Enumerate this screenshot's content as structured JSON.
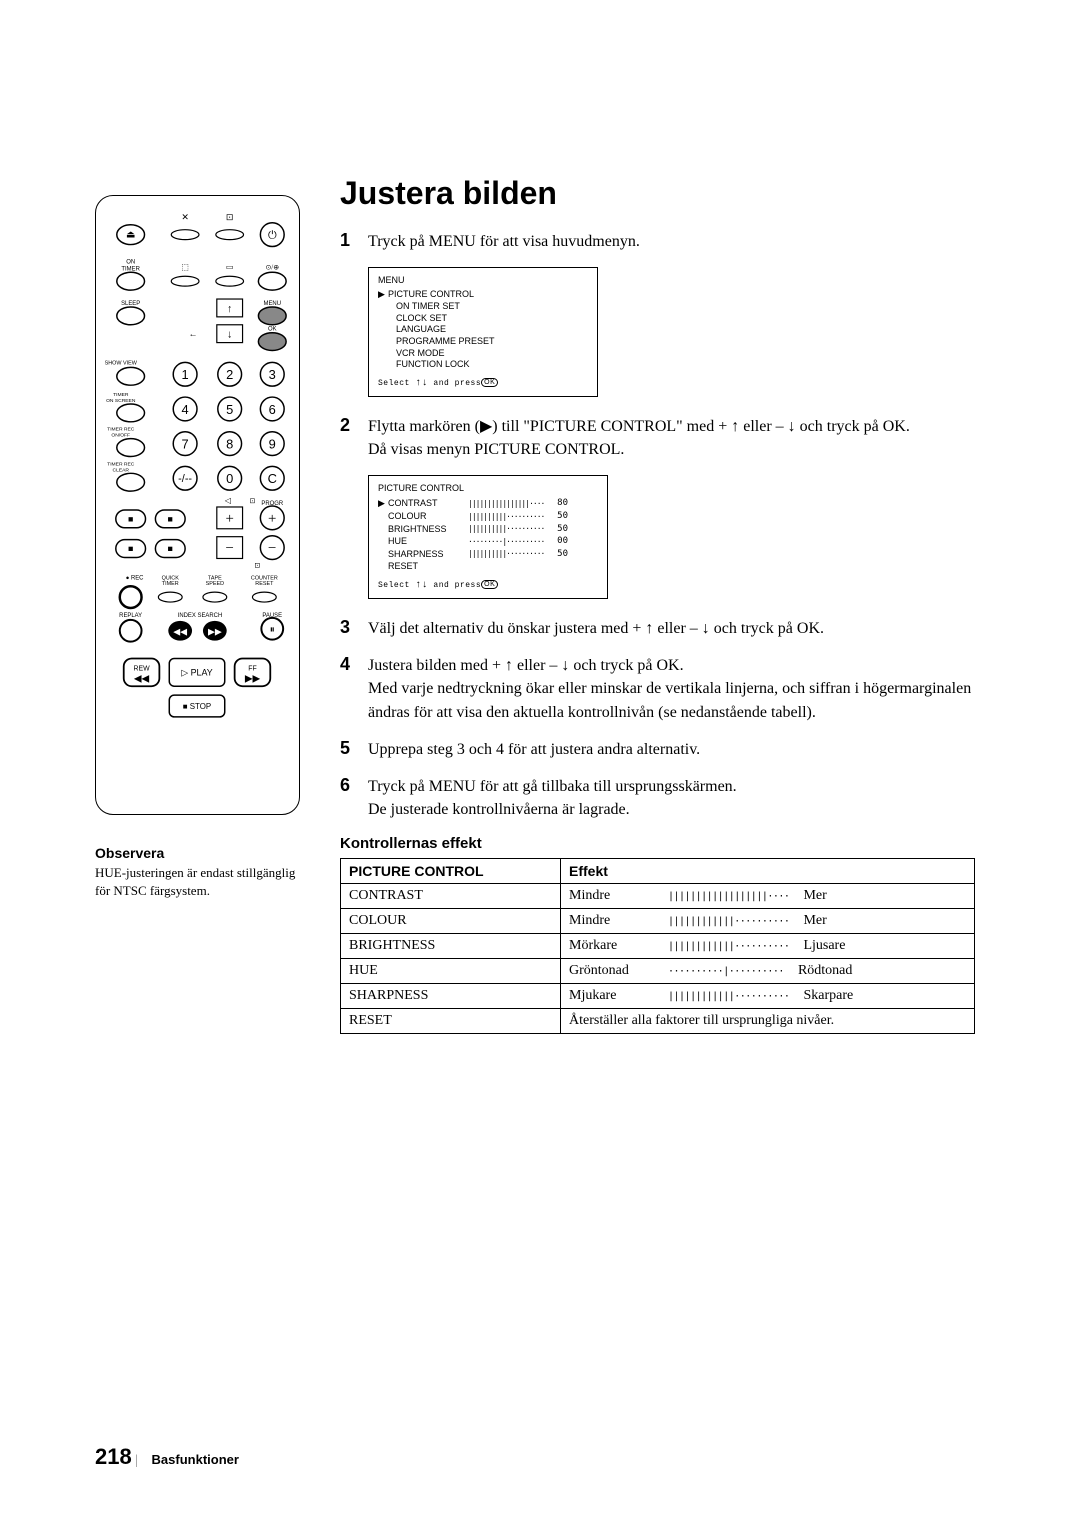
{
  "title": "Justera bilden",
  "remote": {
    "labels": {
      "on_timer": "ON\nTIMER",
      "sleep": "SLEEP",
      "menu": "MENU",
      "ok": "OK",
      "show_view": "SHOW VIEW",
      "timer_on_screen": "TIMER\nON SCREEN",
      "timer_rec_onoff": "TIMER REC\nON/OFF",
      "timer_rec_clear": "TIMER REC\nCLEAR",
      "progr": "PROGR",
      "rec": "REC",
      "quick_timer": "QUICK\nTIMER",
      "tape_speed": "TAPE\nSPEED",
      "counter_reset": "COUNTER\nRESET",
      "replay": "REPLAY",
      "index_search": "INDEX SEARCH",
      "pause": "PAUSE",
      "rew": "REW",
      "play": "PLAY",
      "ff": "FF",
      "stop": "STOP"
    }
  },
  "note": {
    "label": "Observera",
    "text": "HUE-justeringen är endast stillgänglig för NTSC färgsystem."
  },
  "steps": {
    "s1": "Tryck på MENU för att visa huvudmenyn.",
    "s2a": "Flytta markören (▶) till \"PICTURE CONTROL\" med + ↑ eller – ↓ och tryck på OK.",
    "s2b": "Då visas menyn PICTURE CONTROL.",
    "s3": "Välj det alternativ du önskar justera med + ↑ eller – ↓ och tryck på OK.",
    "s4a": "Justera bilden med + ↑ eller – ↓ och tryck på OK.",
    "s4b": "Med varje nedtryckning ökar eller minskar de vertikala linjerna, och siffran i högermarginalen ändras för att visa den aktuella kontrollnivån (se nedanstående tabell).",
    "s5": "Upprepa steg 3 och 4 för att justera andra alternativ.",
    "s6a": "Tryck på MENU för att gå tillbaka till ursprungsskärmen.",
    "s6b": "De justerade kontrollnivåerna är lagrade."
  },
  "menu_box": {
    "title": "MENU",
    "items": [
      "PICTURE CONTROL",
      "ON TIMER SET",
      "CLOCK SET",
      "LANGUAGE",
      "PROGRAMME PRESET",
      "VCR MODE",
      "FUNCTION LOCK"
    ],
    "footer_prefix": "Select ",
    "footer_suffix": " and press",
    "ok": "OK"
  },
  "pc_box": {
    "title": "PICTURE CONTROL",
    "rows": [
      {
        "label": "CONTRAST",
        "bar": "||||||||||||||||····",
        "val": "80"
      },
      {
        "label": "COLOUR",
        "bar": "||||||||||··········",
        "val": "50"
      },
      {
        "label": "BRIGHTNESS",
        "bar": "||||||||||··········",
        "val": "50"
      },
      {
        "label": "HUE",
        "bar": "·········|··········",
        "val": "00"
      },
      {
        "label": "SHARPNESS",
        "bar": "||||||||||··········",
        "val": "50"
      },
      {
        "label": "RESET",
        "bar": "",
        "val": ""
      }
    ],
    "footer_prefix": "Select ",
    "footer_suffix": " and press",
    "ok": "OK"
  },
  "table": {
    "heading": "Kontrollernas effekt",
    "col1": "PICTURE CONTROL",
    "col2": "Effekt",
    "rows": [
      {
        "name": "CONTRAST",
        "left": "Mindre",
        "bar": "||||||||||||||||||····",
        "right": "Mer"
      },
      {
        "name": "COLOUR",
        "left": "Mindre",
        "bar": "||||||||||||··········",
        "right": "Mer"
      },
      {
        "name": "BRIGHTNESS",
        "left": "Mörkare",
        "bar": "||||||||||||··········",
        "right": "Ljusare"
      },
      {
        "name": "HUE",
        "left": "Gröntonad",
        "bar": "··········|··········",
        "right": "Rödtonad"
      },
      {
        "name": "SHARPNESS",
        "left": "Mjukare",
        "bar": "||||||||||||··········",
        "right": "Skarpare"
      },
      {
        "name": "RESET",
        "full": "Återställer alla faktorer till ursprungliga nivåer."
      }
    ]
  },
  "footer": {
    "page": "218",
    "label": "Basfunktioner"
  }
}
